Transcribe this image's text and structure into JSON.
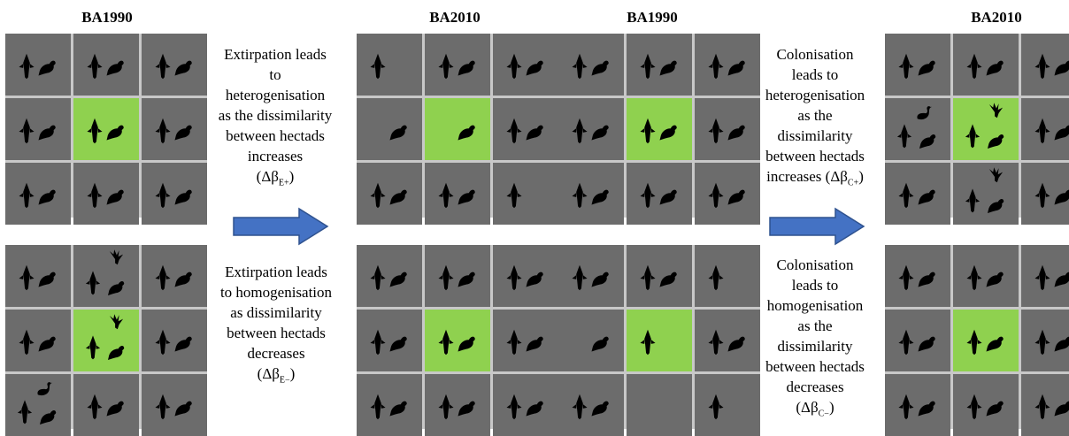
{
  "panel_titles": [
    "BA1990",
    "BA2010",
    "BA1990",
    "BA2010"
  ],
  "captions": {
    "ext_het": {
      "lines": [
        "Extirpation leads",
        "to",
        "heterogenisation",
        "as the dissimilarity",
        "between hectads",
        "increases"
      ],
      "delta": "(Δβ",
      "sub": "E+",
      "close": ")"
    },
    "ext_hom": {
      "lines": [
        "Extirpation leads",
        "to homogenisation",
        "as dissimilarity",
        "between hectads",
        "decreases"
      ],
      "delta": "(Δβ",
      "sub": "E−",
      "close": ")"
    },
    "col_het": {
      "lines": [
        "Colonisation",
        "leads to",
        "heterogenisation",
        "as the",
        "dissimilarity",
        "between hectads"
      ],
      "last": "increases",
      "delta": "(Δβ",
      "sub": "C+",
      "close": ")"
    },
    "col_hom": {
      "lines": [
        "Colonisation",
        "leads to",
        "homogenisation",
        "as the",
        "dissimilarity",
        "between hectads",
        "decreases"
      ],
      "delta": "(Δβ",
      "sub": "C−",
      "close": ")"
    }
  },
  "colors": {
    "cell": "#6c6c6c",
    "focal": "#8fd14f",
    "arrow": "#4472c4",
    "arrow_border": "#2f528f",
    "silhouette": "#000000"
  },
  "icons": [
    "hawk-silhouette-icon",
    "pigeon-silhouette-icon",
    "swan-silhouette-icon",
    "bird-flying-silhouette-icon"
  ],
  "grids": [
    {
      "id": "g1",
      "cells": [
        "hp",
        "hp",
        "hp",
        "hp",
        "hp",
        "hp",
        "hp",
        "hp",
        "hp"
      ]
    },
    {
      "id": "g2",
      "cells": [
        "h",
        "hp",
        "hp",
        "p",
        "p",
        "hp",
        "hp",
        "hp",
        "h"
      ]
    },
    {
      "id": "g3",
      "cells": [
        "hp",
        "hp",
        "hp",
        "hp",
        "hp",
        "hp",
        "hp",
        "hp",
        "hp"
      ]
    },
    {
      "id": "g4",
      "cells": [
        "hp",
        "hp",
        "hp",
        "shp",
        "hpf",
        "hp",
        "hp",
        "hpf",
        "hp"
      ]
    },
    {
      "id": "g5",
      "cells": [
        "hp",
        "hpf",
        "hp",
        "hp",
        "hpf",
        "hp",
        "shp",
        "hp",
        "hp"
      ]
    },
    {
      "id": "g6",
      "cells": [
        "hp",
        "hp",
        "hp",
        "hp",
        "hp",
        "hp",
        "hp",
        "hp",
        "hp"
      ]
    },
    {
      "id": "g7",
      "cells": [
        "hp",
        "hp",
        "h",
        "p",
        "h",
        "hp",
        "hp",
        "",
        "h"
      ]
    },
    {
      "id": "g8",
      "cells": [
        "hp",
        "hp",
        "hp",
        "hp",
        "hp",
        "hp",
        "hp",
        "hp",
        "hp"
      ]
    }
  ]
}
